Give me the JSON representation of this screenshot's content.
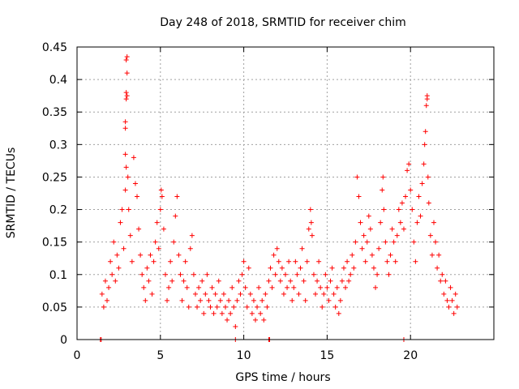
{
  "chart_data": {
    "type": "scatter",
    "title": "Day 248 of 2018, SRMTID for receiver chim",
    "xlabel": "GPS time / hours",
    "ylabel": "SRMTID / TECUs",
    "xlim": [
      0,
      25
    ],
    "ylim": [
      0,
      0.45
    ],
    "grid": true,
    "marker": "+",
    "colors": {
      "points": "#ff0000",
      "grid": "#a0a0a0",
      "axes": "#000000"
    },
    "x_ticks": [
      {
        "value": 0,
        "label": "0"
      },
      {
        "value": 5,
        "label": "5"
      },
      {
        "value": 10,
        "label": "10"
      },
      {
        "value": 15,
        "label": "15"
      },
      {
        "value": 20,
        "label": "20"
      }
    ],
    "y_ticks": [
      {
        "value": 0,
        "label": "0"
      },
      {
        "value": 0.05,
        "label": "0.05"
      },
      {
        "value": 0.1,
        "label": "0.1"
      },
      {
        "value": 0.15,
        "label": "0.15"
      },
      {
        "value": 0.2,
        "label": "0.2"
      },
      {
        "value": 0.25,
        "label": "0.25"
      },
      {
        "value": 0.3,
        "label": "0.3"
      },
      {
        "value": 0.35,
        "label": "0.35"
      },
      {
        "value": 0.4,
        "label": "0.4"
      },
      {
        "value": 0.45,
        "label": "0.45"
      }
    ],
    "series": [
      {
        "name": "SRMTID",
        "points": [
          [
            1.4,
            0.0
          ],
          [
            1.45,
            0.0
          ],
          [
            9.5,
            0.0
          ],
          [
            11.5,
            0.0
          ],
          [
            11.55,
            0.0
          ],
          [
            19.6,
            0.0
          ],
          [
            1.5,
            0.07
          ],
          [
            1.6,
            0.05
          ],
          [
            1.7,
            0.09
          ],
          [
            1.8,
            0.06
          ],
          [
            1.9,
            0.08
          ],
          [
            2.0,
            0.12
          ],
          [
            2.1,
            0.1
          ],
          [
            2.2,
            0.15
          ],
          [
            2.3,
            0.09
          ],
          [
            2.4,
            0.13
          ],
          [
            2.5,
            0.11
          ],
          [
            2.6,
            0.18
          ],
          [
            2.7,
            0.2
          ],
          [
            2.8,
            0.14
          ],
          [
            2.9,
            0.23
          ],
          [
            2.95,
            0.43
          ],
          [
            3.0,
            0.435
          ],
          [
            3.0,
            0.41
          ],
          [
            2.95,
            0.38
          ],
          [
            3.0,
            0.375
          ],
          [
            2.95,
            0.37
          ],
          [
            2.9,
            0.335
          ],
          [
            2.9,
            0.325
          ],
          [
            2.9,
            0.285
          ],
          [
            2.95,
            0.265
          ],
          [
            3.05,
            0.25
          ],
          [
            3.1,
            0.2
          ],
          [
            3.2,
            0.16
          ],
          [
            3.3,
            0.12
          ],
          [
            3.4,
            0.28
          ],
          [
            3.5,
            0.24
          ],
          [
            3.6,
            0.22
          ],
          [
            3.7,
            0.17
          ],
          [
            3.8,
            0.13
          ],
          [
            3.9,
            0.1
          ],
          [
            4.0,
            0.08
          ],
          [
            4.1,
            0.06
          ],
          [
            4.2,
            0.11
          ],
          [
            4.3,
            0.09
          ],
          [
            4.4,
            0.13
          ],
          [
            4.5,
            0.07
          ],
          [
            4.6,
            0.12
          ],
          [
            4.7,
            0.15
          ],
          [
            4.8,
            0.18
          ],
          [
            4.9,
            0.14
          ],
          [
            5.0,
            0.2
          ],
          [
            5.05,
            0.23
          ],
          [
            5.1,
            0.22
          ],
          [
            5.2,
            0.17
          ],
          [
            5.3,
            0.1
          ],
          [
            5.4,
            0.06
          ],
          [
            5.5,
            0.08
          ],
          [
            5.6,
            0.12
          ],
          [
            5.7,
            0.09
          ],
          [
            5.8,
            0.15
          ],
          [
            5.9,
            0.19
          ],
          [
            6.0,
            0.22
          ],
          [
            6.1,
            0.13
          ],
          [
            6.2,
            0.1
          ],
          [
            6.3,
            0.06
          ],
          [
            6.4,
            0.09
          ],
          [
            6.5,
            0.12
          ],
          [
            6.6,
            0.08
          ],
          [
            6.7,
            0.05
          ],
          [
            6.8,
            0.14
          ],
          [
            6.9,
            0.16
          ],
          [
            7.0,
            0.1
          ],
          [
            7.1,
            0.07
          ],
          [
            7.2,
            0.05
          ],
          [
            7.3,
            0.08
          ],
          [
            7.4,
            0.06
          ],
          [
            7.5,
            0.09
          ],
          [
            7.6,
            0.04
          ],
          [
            7.7,
            0.07
          ],
          [
            7.8,
            0.1
          ],
          [
            7.9,
            0.06
          ],
          [
            8.0,
            0.05
          ],
          [
            8.1,
            0.08
          ],
          [
            8.2,
            0.04
          ],
          [
            8.3,
            0.07
          ],
          [
            8.4,
            0.05
          ],
          [
            8.5,
            0.09
          ],
          [
            8.6,
            0.06
          ],
          [
            8.7,
            0.04
          ],
          [
            8.8,
            0.07
          ],
          [
            8.9,
            0.05
          ],
          [
            9.0,
            0.03
          ],
          [
            9.1,
            0.06
          ],
          [
            9.2,
            0.04
          ],
          [
            9.3,
            0.08
          ],
          [
            9.4,
            0.05
          ],
          [
            9.5,
            0.02
          ],
          [
            9.6,
            0.06
          ],
          [
            9.7,
            0.09
          ],
          [
            9.8,
            0.07
          ],
          [
            9.9,
            0.1
          ],
          [
            10.0,
            0.12
          ],
          [
            10.1,
            0.08
          ],
          [
            10.2,
            0.05
          ],
          [
            10.3,
            0.11
          ],
          [
            10.4,
            0.07
          ],
          [
            10.5,
            0.04
          ],
          [
            10.6,
            0.06
          ],
          [
            10.7,
            0.03
          ],
          [
            10.8,
            0.05
          ],
          [
            10.9,
            0.08
          ],
          [
            11.0,
            0.04
          ],
          [
            11.1,
            0.06
          ],
          [
            11.2,
            0.03
          ],
          [
            11.3,
            0.07
          ],
          [
            11.4,
            0.05
          ],
          [
            11.5,
            0.09
          ],
          [
            11.6,
            0.11
          ],
          [
            11.7,
            0.08
          ],
          [
            11.8,
            0.13
          ],
          [
            11.9,
            0.1
          ],
          [
            12.0,
            0.14
          ],
          [
            12.1,
            0.12
          ],
          [
            12.2,
            0.09
          ],
          [
            12.3,
            0.11
          ],
          [
            12.4,
            0.07
          ],
          [
            12.5,
            0.1
          ],
          [
            12.6,
            0.08
          ],
          [
            12.7,
            0.12
          ],
          [
            12.8,
            0.09
          ],
          [
            12.9,
            0.06
          ],
          [
            13.0,
            0.08
          ],
          [
            13.1,
            0.12
          ],
          [
            13.2,
            0.1
          ],
          [
            13.3,
            0.07
          ],
          [
            13.4,
            0.11
          ],
          [
            13.5,
            0.14
          ],
          [
            13.6,
            0.09
          ],
          [
            13.7,
            0.06
          ],
          [
            13.8,
            0.12
          ],
          [
            13.9,
            0.17
          ],
          [
            14.0,
            0.2
          ],
          [
            14.05,
            0.18
          ],
          [
            14.1,
            0.16
          ],
          [
            14.2,
            0.1
          ],
          [
            14.3,
            0.07
          ],
          [
            14.4,
            0.09
          ],
          [
            14.5,
            0.12
          ],
          [
            14.6,
            0.08
          ],
          [
            14.7,
            0.05
          ],
          [
            14.8,
            0.07
          ],
          [
            14.9,
            0.1
          ],
          [
            15.0,
            0.08
          ],
          [
            15.1,
            0.06
          ],
          [
            15.2,
            0.09
          ],
          [
            15.3,
            0.11
          ],
          [
            15.4,
            0.07
          ],
          [
            15.5,
            0.05
          ],
          [
            15.6,
            0.08
          ],
          [
            15.7,
            0.04
          ],
          [
            15.8,
            0.06
          ],
          [
            15.9,
            0.09
          ],
          [
            16.0,
            0.11
          ],
          [
            16.1,
            0.08
          ],
          [
            16.2,
            0.12
          ],
          [
            16.3,
            0.09
          ],
          [
            16.4,
            0.1
          ],
          [
            16.5,
            0.13
          ],
          [
            16.6,
            0.11
          ],
          [
            16.7,
            0.15
          ],
          [
            16.8,
            0.25
          ],
          [
            16.9,
            0.22
          ],
          [
            17.0,
            0.18
          ],
          [
            17.1,
            0.14
          ],
          [
            17.2,
            0.16
          ],
          [
            17.3,
            0.12
          ],
          [
            17.4,
            0.15
          ],
          [
            17.5,
            0.19
          ],
          [
            17.6,
            0.17
          ],
          [
            17.7,
            0.13
          ],
          [
            17.8,
            0.11
          ],
          [
            17.9,
            0.08
          ],
          [
            18.0,
            0.1
          ],
          [
            18.1,
            0.14
          ],
          [
            18.2,
            0.18
          ],
          [
            18.3,
            0.23
          ],
          [
            18.35,
            0.25
          ],
          [
            18.4,
            0.2
          ],
          [
            18.5,
            0.15
          ],
          [
            18.6,
            0.12
          ],
          [
            18.7,
            0.1
          ],
          [
            18.8,
            0.13
          ],
          [
            18.9,
            0.17
          ],
          [
            19.0,
            0.15
          ],
          [
            19.1,
            0.12
          ],
          [
            19.2,
            0.16
          ],
          [
            19.3,
            0.2
          ],
          [
            19.4,
            0.18
          ],
          [
            19.5,
            0.21
          ],
          [
            19.6,
            0.17
          ],
          [
            19.7,
            0.22
          ],
          [
            19.8,
            0.26
          ],
          [
            19.9,
            0.27
          ],
          [
            20.0,
            0.23
          ],
          [
            20.1,
            0.2
          ],
          [
            20.2,
            0.15
          ],
          [
            20.3,
            0.12
          ],
          [
            20.4,
            0.18
          ],
          [
            20.5,
            0.22
          ],
          [
            20.6,
            0.19
          ],
          [
            20.7,
            0.24
          ],
          [
            20.8,
            0.27
          ],
          [
            20.85,
            0.3
          ],
          [
            20.9,
            0.32
          ],
          [
            20.95,
            0.36
          ],
          [
            21.0,
            0.37
          ],
          [
            21.0,
            0.375
          ],
          [
            21.05,
            0.25
          ],
          [
            21.1,
            0.21
          ],
          [
            21.2,
            0.16
          ],
          [
            21.3,
            0.13
          ],
          [
            21.4,
            0.18
          ],
          [
            21.5,
            0.15
          ],
          [
            21.6,
            0.11
          ],
          [
            21.7,
            0.13
          ],
          [
            21.8,
            0.09
          ],
          [
            21.9,
            0.1
          ],
          [
            22.0,
            0.07
          ],
          [
            22.1,
            0.09
          ],
          [
            22.2,
            0.06
          ],
          [
            22.3,
            0.05
          ],
          [
            22.4,
            0.08
          ],
          [
            22.5,
            0.06
          ],
          [
            22.6,
            0.04
          ],
          [
            22.7,
            0.07
          ],
          [
            22.8,
            0.05
          ]
        ]
      }
    ]
  }
}
